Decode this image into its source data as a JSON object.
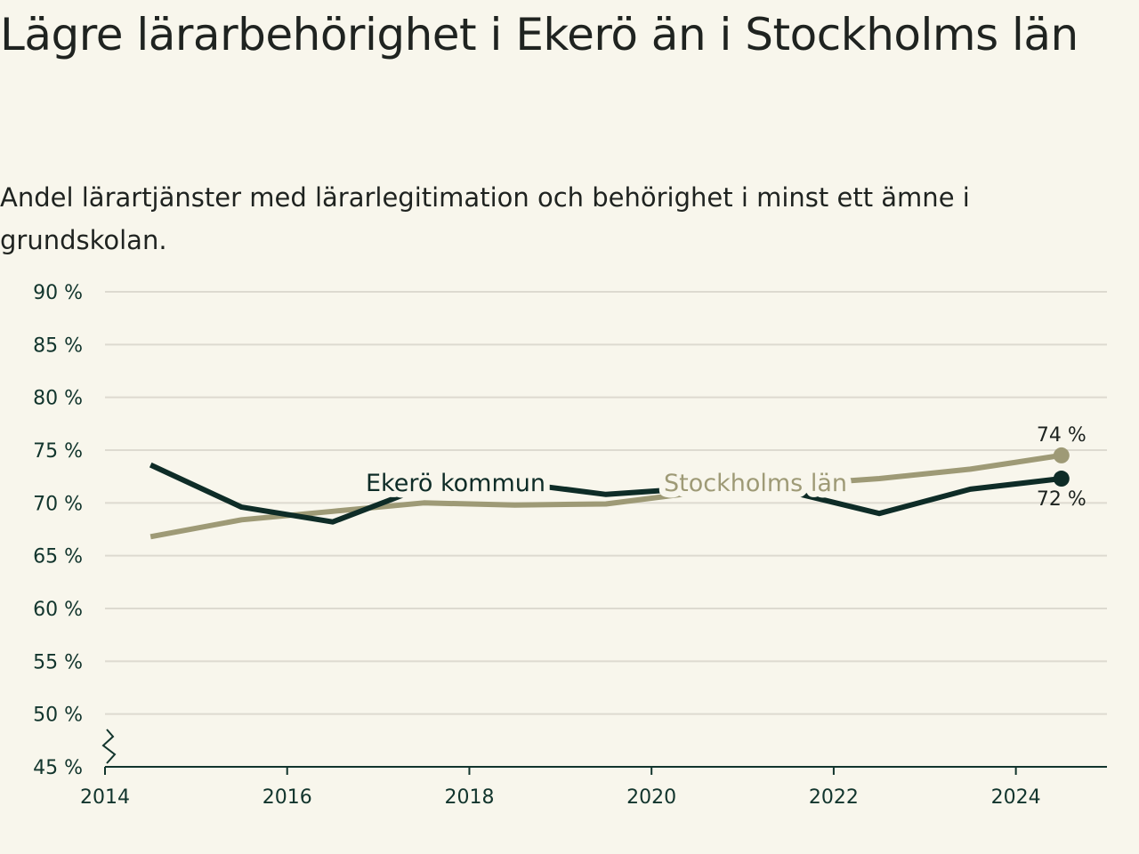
{
  "title": "Lägre lärarbehörighet i Ekerö än i Stockholms län",
  "subtitle": "Andel lärartjänster med lärarlegitimation och behörighet i minst ett ämne i grundskolan.",
  "colors": {
    "background": "#f8f6ec",
    "ekero": "#0e2c27",
    "stockholm": "#9e9a76",
    "grid": "#dddad0",
    "axis": "#12352d"
  },
  "chart_data": {
    "type": "line",
    "xlim": [
      2014,
      2025
    ],
    "ylim": [
      45,
      90
    ],
    "y_ticks": [
      45,
      50,
      55,
      60,
      65,
      70,
      75,
      80,
      85,
      90
    ],
    "y_tick_labels": [
      "45 %",
      "50 %",
      "55 %",
      "60 %",
      "65 %",
      "70 %",
      "75 %",
      "80 %",
      "85 %",
      "90 %"
    ],
    "x_ticks": [
      2014,
      2016,
      2018,
      2020,
      2022,
      2024
    ],
    "x_tick_labels": [
      "2014",
      "2016",
      "2018",
      "2020",
      "2022",
      "2024"
    ],
    "grid": true,
    "axis_break": true,
    "series": [
      {
        "name": "Ekerö kommun",
        "color": "#0e2c27",
        "x": [
          2014.5,
          2015.5,
          2016.5,
          2017.5,
          2018.5,
          2019.5,
          2020.5,
          2021.5,
          2022.5,
          2023.5,
          2024.5
        ],
        "y": [
          73.6,
          69.6,
          68.2,
          71.5,
          71.9,
          70.8,
          71.4,
          71.1,
          69.0,
          71.3,
          72.3
        ],
        "end_label": "72 %"
      },
      {
        "name": "Stockholms län",
        "color": "#9e9a76",
        "x": [
          2014.5,
          2015.5,
          2016.5,
          2017.5,
          2018.5,
          2019.5,
          2020.5,
          2021.5,
          2022.5,
          2023.5,
          2024.5
        ],
        "y": [
          66.8,
          68.4,
          69.2,
          70.0,
          69.8,
          69.9,
          71.0,
          71.7,
          72.3,
          73.2,
          74.5
        ],
        "end_label": "74 %"
      }
    ]
  }
}
